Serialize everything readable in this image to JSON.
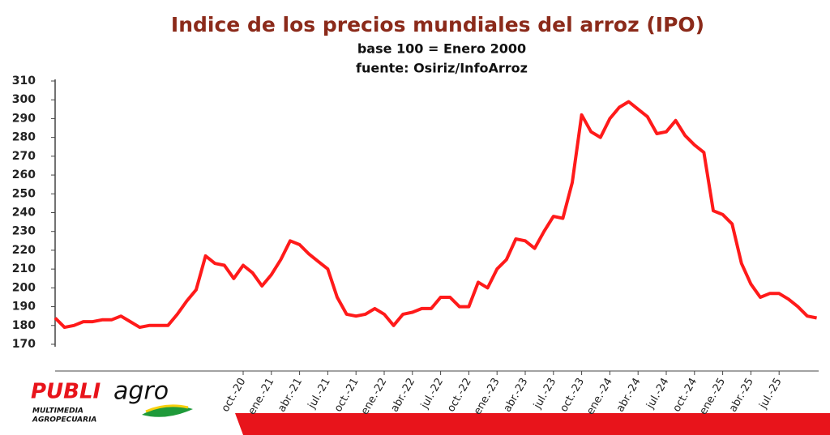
{
  "chart_data": {
    "type": "line",
    "title": "Indice de los precios mundiales del arroz (IPO)",
    "subtitle": "base 100 = Enero 2000",
    "source": "fuente: Osiriz/InfoArroz",
    "categories": [
      null,
      null,
      null,
      null,
      null,
      null,
      null,
      null,
      null,
      null,
      null,
      null,
      null,
      null,
      null,
      null,
      null,
      null,
      null,
      null,
      "oct.-20",
      null,
      null,
      "ene.-21",
      null,
      null,
      "abr.-21",
      null,
      null,
      "jul.-21",
      null,
      null,
      "oct.-21",
      null,
      null,
      "ene.-22",
      null,
      null,
      "abr.-22",
      null,
      null,
      "jul.-22",
      null,
      null,
      "oct.-22",
      null,
      null,
      "ene.-23",
      null,
      null,
      "abr.-23",
      null,
      null,
      "jul.-23",
      null,
      null,
      "oct.-23",
      null,
      null,
      "ene.-24",
      null,
      null,
      "abr.-24",
      null,
      null,
      "jul.-24",
      null,
      null,
      "oct.-24",
      null,
      null,
      "ene.-25",
      null,
      null,
      "abr.-25",
      null,
      null,
      "jul.-25",
      null,
      null,
      null,
      null
    ],
    "series": [
      {
        "name": "IPO",
        "color": "#ff1a1a",
        "values": [
          184,
          179,
          180,
          182,
          182,
          183,
          183,
          185,
          182,
          179,
          180,
          180,
          180,
          186,
          193,
          199,
          217,
          213,
          212,
          205,
          212,
          208,
          201,
          207,
          215,
          225,
          223,
          218,
          214,
          210,
          195,
          186,
          185,
          186,
          189,
          186,
          180,
          186,
          187,
          189,
          189,
          195,
          195,
          190,
          190,
          203,
          200,
          210,
          215,
          226,
          225,
          221,
          230,
          238,
          237,
          256,
          292,
          283,
          280,
          290,
          296,
          299,
          295,
          291,
          282,
          283,
          289,
          281,
          276,
          272,
          241,
          239,
          234,
          213,
          202,
          195,
          197,
          197,
          194,
          190,
          185,
          184
        ]
      }
    ],
    "ylim": [
      170,
      310
    ],
    "yticks": [
      170,
      180,
      190,
      200,
      210,
      220,
      230,
      240,
      250,
      260,
      270,
      280,
      290,
      300,
      310
    ],
    "grid": false
  },
  "logo": {
    "brand_a": "PUBLI",
    "brand_b": "agro",
    "tagline_1": "MULTIMEDIA",
    "tagline_2": "AGROPECUARIA"
  }
}
